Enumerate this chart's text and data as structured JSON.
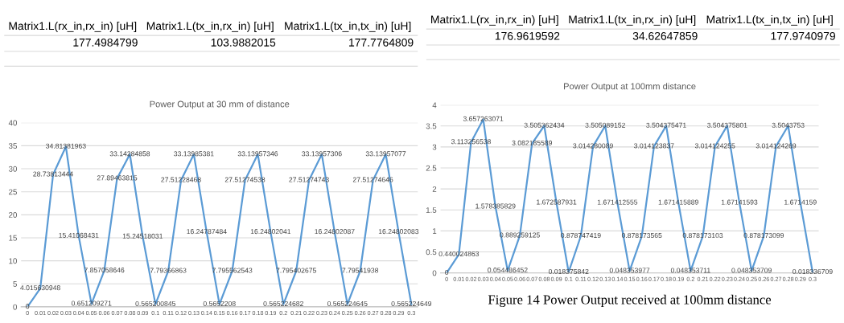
{
  "chart_data": [
    {
      "type": "other",
      "categories": [
        "Matrix1.L(rx_in,rx_in) [uH]",
        "Matrix1.L(tx_in,rx_in) [uH]",
        "Matrix1.L(tx_in,tx_in) [uH]"
      ],
      "values": [
        177.4984799,
        103.9882015,
        177.7764809
      ],
      "data_labels": true
    },
    {
      "type": "other",
      "categories": [
        "Matrix1.L(rx_in,rx_in) [uH]",
        "Matrix1.L(tx_in,rx_in) [uH]",
        "Matrix1.L(tx_in,tx_in) [uH]"
      ],
      "values": [
        176.9619592,
        34.62647859,
        177.9740979
      ],
      "data_labels": true
    },
    {
      "type": "line",
      "title": "Power Output at 30 mm of distance",
      "categories": [
        "0",
        "0.01",
        "0.02",
        "0.03",
        "0.04",
        "0.05",
        "0.06",
        "0.07",
        "0.08",
        "0.09",
        "0.1",
        "0.11",
        "0.12",
        "0.13",
        "0.14",
        "0.15",
        "0.16",
        "0.17",
        "0.18",
        "0.19",
        "0.2",
        "0.21",
        "0.22",
        "0.23",
        "0.24",
        "0.25",
        "0.26",
        "0.27",
        "0.28",
        "0.29",
        "0.3"
      ],
      "series": [
        {
          "color": "#5b9bd5",
          "values": [
            0,
            4.015630948,
            28.73813444,
            34.81381963,
            15.41068431,
            0.651209271,
            7.857058646,
            27.89463815,
            33.14284858,
            15.24518031,
            0.565200845,
            7.79366863,
            27.51228468,
            33.13985381,
            16.24787484,
            0.5652208,
            7.795562543,
            27.51274538,
            33.13957346,
            16.24802041,
            0.565224682,
            7.795402675,
            27.51274743,
            33.13957306,
            16.24802087,
            0.565224645,
            7.79541938,
            27.51274646,
            33.13957077,
            16.24802083,
            0.565224649
          ]
        }
      ],
      "ylim": [
        0,
        40
      ],
      "yticks": [
        0,
        5,
        10,
        15,
        20,
        25,
        30,
        35,
        40
      ],
      "grid": "y",
      "marker": "none",
      "line_style": "solid",
      "data_labels": true,
      "legend": false
    },
    {
      "type": "line",
      "title": "Power Output at 100mm distance",
      "annotations": [
        "Figure 14 Power Output received at 100mm distance"
      ],
      "categories": [
        "0",
        "0.01",
        "0.02",
        "0.03",
        "0.04",
        "0.05",
        "0.06",
        "0.07",
        "0.08",
        "0.09",
        "0.1",
        "0.11",
        "0.12",
        "0.13",
        "0.14",
        "0.15",
        "0.16",
        "0.17",
        "0.18",
        "0.19",
        "0.2",
        "0.21",
        "0.22",
        "0.23",
        "0.24",
        "0.25",
        "0.26",
        "0.27",
        "0.28",
        "0.29",
        "0.3"
      ],
      "series": [
        {
          "color": "#5b9bd5",
          "values": [
            0,
            0.440024863,
            3.113256538,
            3.657263071,
            1.578385829,
            0.054486452,
            0.889259125,
            3.082185589,
            3.505362434,
            1.672587931,
            0.018375842,
            0.878747419,
            3.014280089,
            3.505089152,
            1.671412555,
            0.048353977,
            0.878173565,
            3.014123837,
            3.504375471,
            1.671415889,
            0.048353711,
            0.878173103,
            3.014124255,
            3.504375801,
            1.67141593,
            0.048353709,
            0.878173099,
            3.014124269,
            3.5043753,
            1.6714159,
            0.018336709
          ]
        }
      ],
      "ylim": [
        0,
        4
      ],
      "yticks": [
        0,
        0.5,
        1,
        1.5,
        2,
        2.5,
        3,
        3.5,
        4
      ],
      "grid": "y",
      "marker": "none",
      "line_style": "solid",
      "data_labels": true,
      "legend": false
    }
  ]
}
